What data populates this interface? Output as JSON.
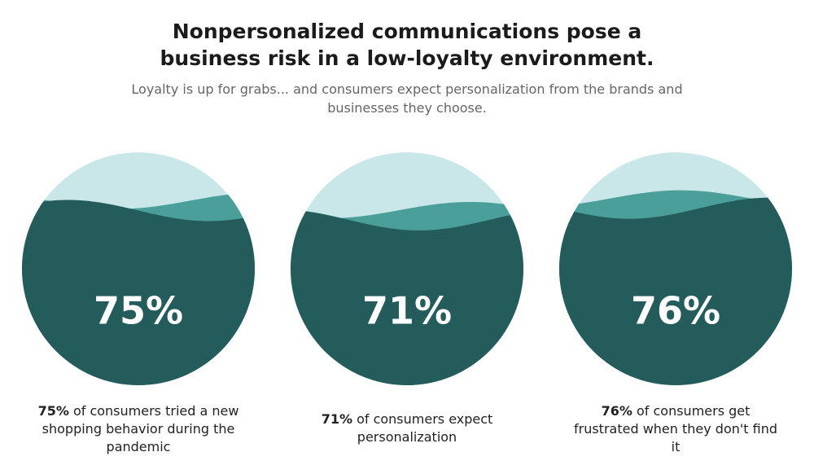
{
  "chart_data": {
    "type": "liquid-fill",
    "title": "Nonpersonalized communications pose a business risk in a low-loyalty environment.",
    "subtitle": "Loyalty is up for grabs... and consumers expect personalization from the brands and businesses they choose.",
    "values": [
      75,
      71,
      76
    ],
    "value_labels": [
      "75%",
      "71%",
      "76%"
    ],
    "captions": [
      "of consumers tried a new shopping behavior during the pandemic",
      "of consumers expect personalization",
      "of consumers get frustrated when they don't find it"
    ],
    "colors": {
      "empty": "#c9e7e8",
      "wave": "#4b9f9b",
      "fill": "#245b5b"
    }
  }
}
